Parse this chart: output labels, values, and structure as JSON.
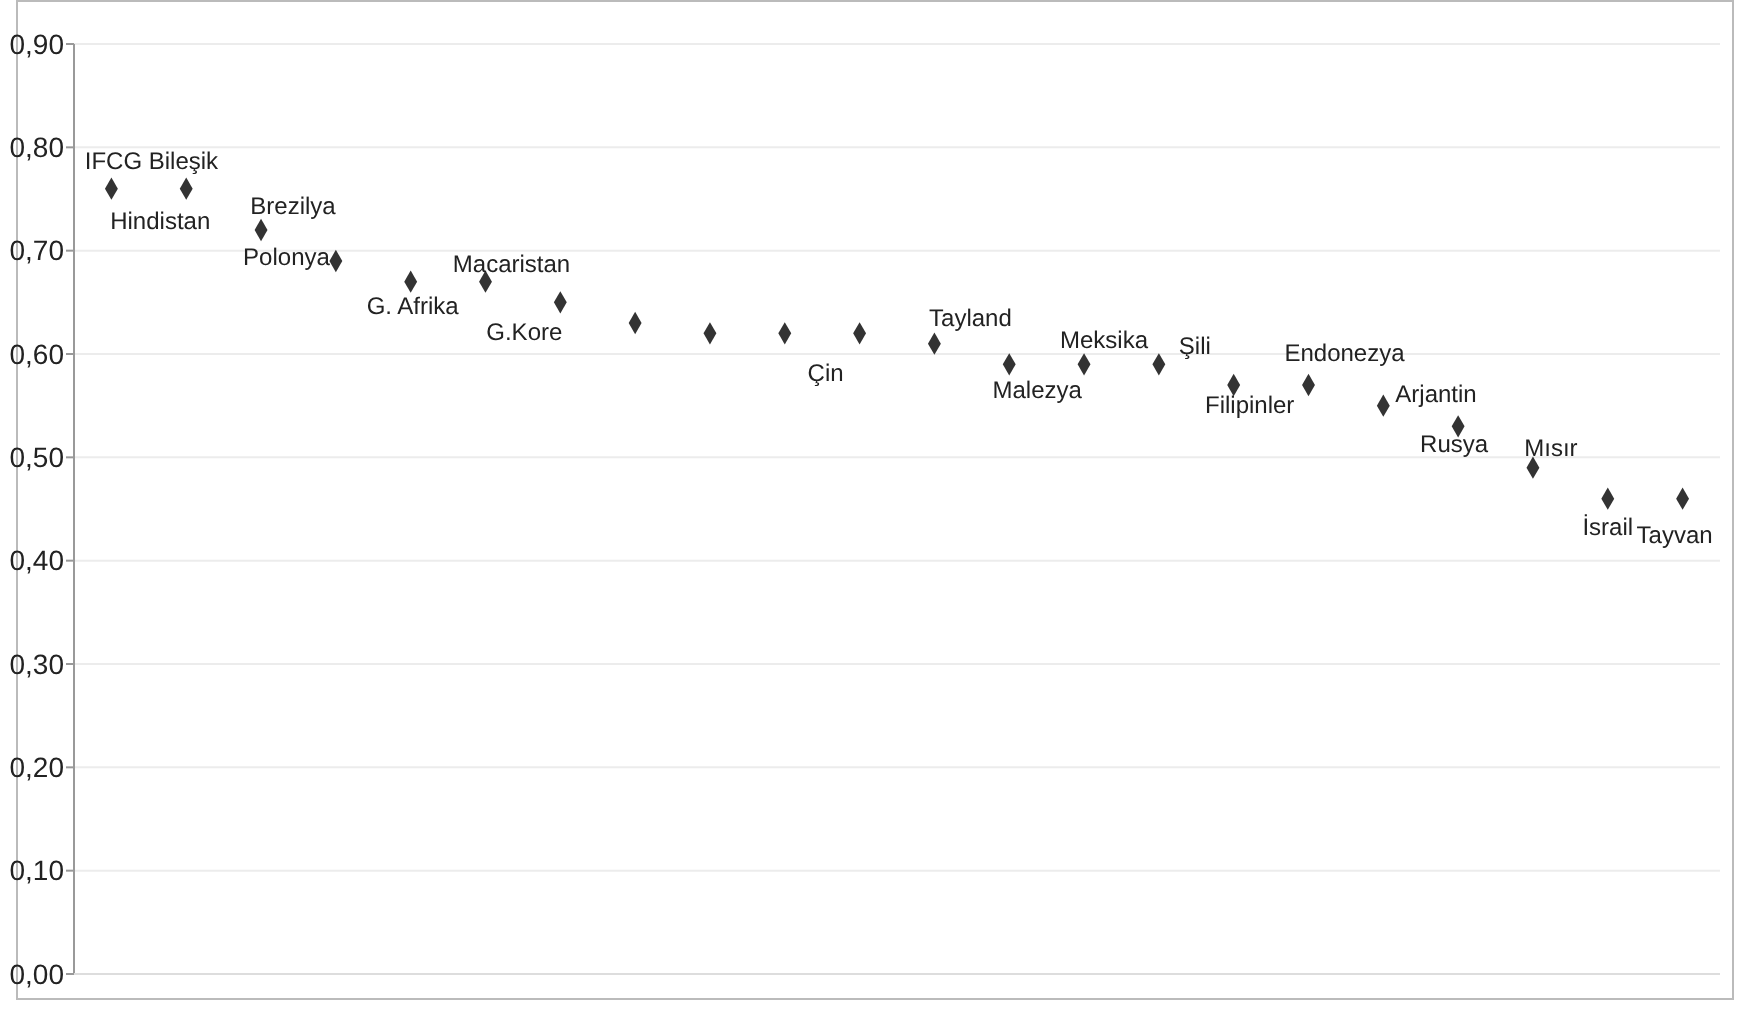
{
  "chart_data": {
    "type": "scatter",
    "categories": [
      null,
      null,
      null,
      null,
      null,
      null,
      null,
      null,
      null,
      null,
      null,
      null,
      null,
      null,
      null,
      null,
      null,
      null,
      null,
      null,
      null,
      null
    ],
    "values": [
      0.76,
      0.76,
      0.72,
      0.69,
      0.67,
      0.67,
      0.65,
      0.63,
      0.62,
      0.62,
      0.62,
      0.61,
      0.59,
      0.59,
      0.59,
      0.57,
      0.57,
      0.55,
      0.53,
      0.49,
      0.46,
      0.46
    ],
    "value_labels": [
      "IFCG Bileşik",
      "Hindistan",
      "Brezilya",
      "Polonya",
      "G. Afrika",
      "Macaristan",
      "G.Kore",
      null,
      null,
      null,
      "Çin",
      "Tayland",
      "Malezya",
      "Meksika",
      "Şili",
      "Filipinler",
      "Endonezya",
      "Arjantin",
      "Rusya",
      "Mısır",
      "İsrail",
      "Tayvan"
    ],
    "color": "#333333",
    "marker": "diamond",
    "grid": "y",
    "tick_labels": "y",
    "ylim": [
      0,
      0.9
    ],
    "yticks": [
      {
        "value": 0,
        "label": "0,00"
      },
      {
        "value": 0.1,
        "label": "0,10"
      },
      {
        "value": 0.2,
        "label": "0,20"
      },
      {
        "value": 0.3,
        "label": "0,30"
      },
      {
        "value": 0.4,
        "label": "0,40"
      },
      {
        "value": 0.5,
        "label": "0,50"
      },
      {
        "value": 0.6,
        "label": "0,60"
      },
      {
        "value": 0.7,
        "label": "0,70"
      },
      {
        "value": 0.8,
        "label": "0,80"
      },
      {
        "value": 0.9,
        "label": "0,90"
      }
    ]
  }
}
